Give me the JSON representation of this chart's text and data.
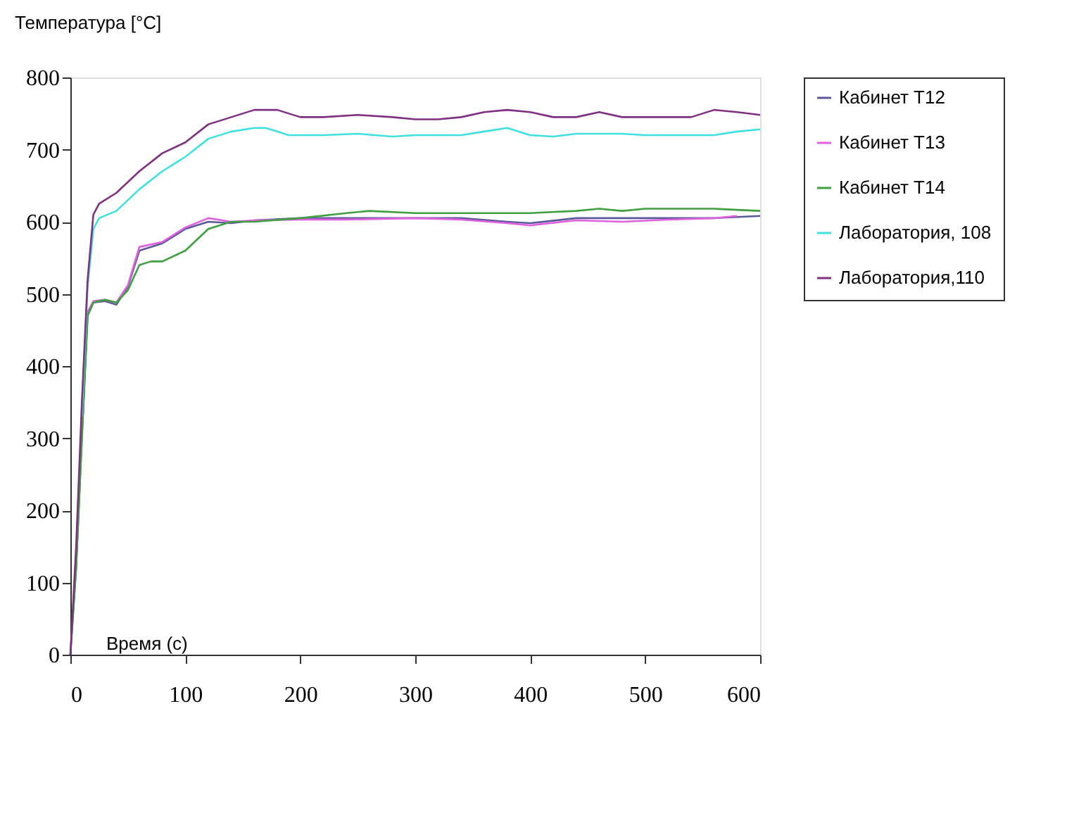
{
  "chart_data": {
    "type": "line",
    "ylabel": "Температура [°C]",
    "xlabel": "Время (с)",
    "xlim": [
      0,
      600
    ],
    "ylim": [
      0,
      800
    ],
    "xticks": [
      0,
      100,
      200,
      300,
      400,
      500,
      600
    ],
    "yticks": [
      0,
      100,
      200,
      300,
      400,
      500,
      600,
      700,
      800
    ],
    "grid": false,
    "legend": "right",
    "marker": "none",
    "line_style": "solid",
    "series": [
      {
        "name": "Кабинет Т12",
        "color": "#5a5a9a",
        "x": [
          0,
          5,
          10,
          15,
          20,
          30,
          40,
          50,
          60,
          80,
          100,
          120,
          140,
          160,
          200,
          240,
          300,
          340,
          380,
          400,
          440,
          480,
          520,
          560,
          600
        ],
        "values": [
          0,
          120,
          300,
          470,
          488,
          490,
          485,
          510,
          560,
          570,
          590,
          600,
          598,
          602,
          605,
          605,
          605,
          605,
          600,
          598,
          605,
          605,
          605,
          605,
          608
        ]
      },
      {
        "name": "Кабинет Т13",
        "color": "#e060e0",
        "x": [
          10,
          15,
          20,
          30,
          40,
          50,
          60,
          80,
          100,
          120,
          140,
          160,
          200,
          240,
          300,
          340,
          380,
          400,
          440,
          480,
          520,
          560,
          580
        ],
        "values": [
          320,
          475,
          490,
          492,
          488,
          512,
          565,
          572,
          592,
          605,
          600,
          602,
          603,
          603,
          605,
          603,
          598,
          595,
          602,
          600,
          603,
          605,
          608
        ]
      },
      {
        "name": "Кабинет Т14",
        "color": "#40a040",
        "x": [
          0,
          5,
          10,
          15,
          20,
          30,
          40,
          50,
          60,
          70,
          80,
          100,
          120,
          140,
          160,
          200,
          240,
          260,
          300,
          400,
          440,
          460,
          480,
          500,
          560,
          600
        ],
        "values": [
          0,
          120,
          300,
          470,
          488,
          492,
          488,
          505,
          540,
          545,
          545,
          560,
          590,
          600,
          600,
          605,
          612,
          615,
          612,
          612,
          615,
          618,
          615,
          618,
          618,
          615
        ]
      },
      {
        "name": "Лаборатория, 108",
        "color": "#40e0e0",
        "x": [
          10,
          15,
          20,
          25,
          40,
          60,
          80,
          100,
          120,
          140,
          160,
          170,
          190,
          220,
          250,
          280,
          300,
          340,
          360,
          380,
          400,
          420,
          440,
          480,
          500,
          540,
          560,
          580,
          600
        ],
        "values": [
          330,
          510,
          590,
          605,
          615,
          645,
          670,
          690,
          715,
          725,
          730,
          730,
          720,
          720,
          722,
          718,
          720,
          720,
          725,
          730,
          720,
          718,
          722,
          722,
          720,
          720,
          720,
          725,
          728
        ]
      },
      {
        "name": "Лаборатория,110",
        "color": "#803080",
        "x": [
          0,
          5,
          10,
          15,
          20,
          25,
          40,
          60,
          80,
          100,
          120,
          140,
          160,
          180,
          200,
          220,
          250,
          280,
          300,
          320,
          340,
          360,
          380,
          400,
          420,
          440,
          460,
          480,
          500,
          520,
          540,
          560,
          580,
          600
        ],
        "values": [
          0,
          150,
          350,
          520,
          610,
          625,
          640,
          670,
          695,
          710,
          735,
          745,
          755,
          755,
          745,
          745,
          748,
          745,
          742,
          742,
          745,
          752,
          755,
          752,
          745,
          745,
          752,
          745,
          745,
          745,
          745,
          755,
          752,
          748
        ]
      }
    ]
  }
}
